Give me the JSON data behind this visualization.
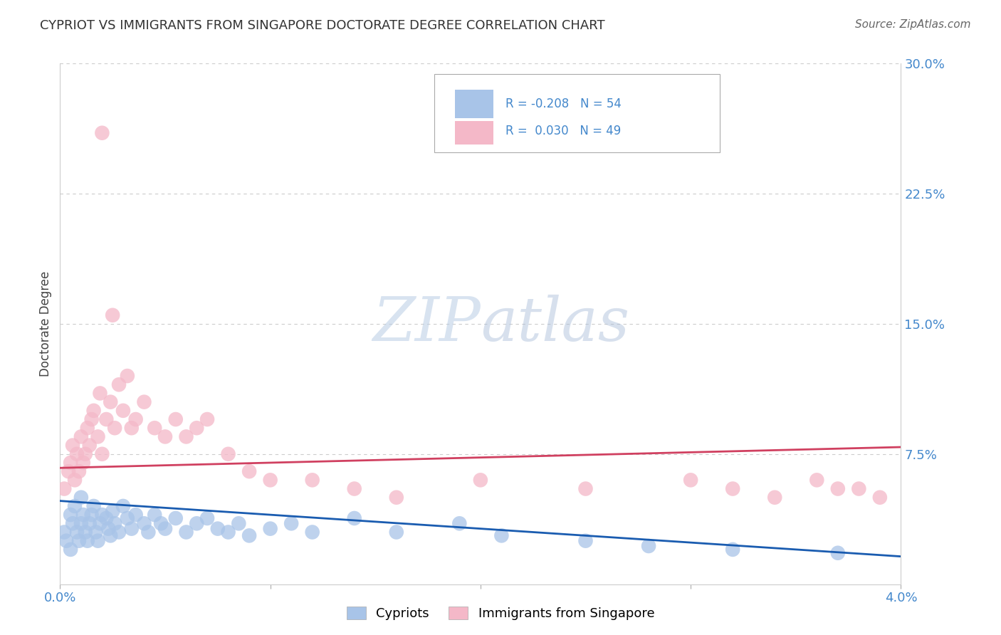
{
  "title": "CYPRIOT VS IMMIGRANTS FROM SINGAPORE DOCTORATE DEGREE CORRELATION CHART",
  "source": "Source: ZipAtlas.com",
  "ylabel_label": "Doctorate Degree",
  "xlim": [
    0.0,
    0.04
  ],
  "ylim": [
    0.0,
    0.3
  ],
  "ytick_positions": [
    0.0,
    0.075,
    0.15,
    0.225,
    0.3
  ],
  "ytick_labels": [
    "",
    "7.5%",
    "15.0%",
    "22.5%",
    "30.0%"
  ],
  "xtick_positions": [
    0.0,
    0.01,
    0.02,
    0.03,
    0.04
  ],
  "xtick_labels": [
    "0.0%",
    "",
    "",
    "",
    "4.0%"
  ],
  "legend_blue_r": "R = -0.208",
  "legend_blue_n": "N = 54",
  "legend_pink_r": "R =  0.030",
  "legend_pink_n": "N = 49",
  "blue_scatter_color": "#a8c4e8",
  "pink_scatter_color": "#f4b8c8",
  "blue_line_color": "#1a5cb0",
  "pink_line_color": "#d04060",
  "legend_blue_r_color": "#d04060",
  "legend_blue_n_color": "#1a5cb0",
  "watermark_zip_color": "#c8d8ee",
  "watermark_atlas_color": "#b8c8e0",
  "axis_label_color": "#4488cc",
  "title_color": "#333333",
  "grid_color": "#cccccc",
  "blue_line_x": [
    0.0,
    0.04
  ],
  "blue_line_y": [
    0.048,
    0.016
  ],
  "pink_line_x": [
    0.0,
    0.04
  ],
  "pink_line_y": [
    0.067,
    0.079
  ],
  "blue_x": [
    0.0002,
    0.0003,
    0.0005,
    0.0005,
    0.0006,
    0.0007,
    0.0008,
    0.0009,
    0.001,
    0.001,
    0.0011,
    0.0012,
    0.0013,
    0.0014,
    0.0015,
    0.0016,
    0.0017,
    0.0018,
    0.0019,
    0.002,
    0.0022,
    0.0023,
    0.0024,
    0.0025,
    0.0026,
    0.0028,
    0.003,
    0.0032,
    0.0034,
    0.0036,
    0.004,
    0.0042,
    0.0045,
    0.0048,
    0.005,
    0.0055,
    0.006,
    0.0065,
    0.007,
    0.0075,
    0.008,
    0.0085,
    0.009,
    0.01,
    0.011,
    0.012,
    0.014,
    0.016,
    0.019,
    0.021,
    0.025,
    0.028,
    0.032,
    0.037
  ],
  "blue_y": [
    0.03,
    0.025,
    0.04,
    0.02,
    0.035,
    0.045,
    0.03,
    0.025,
    0.05,
    0.035,
    0.04,
    0.03,
    0.025,
    0.035,
    0.04,
    0.045,
    0.03,
    0.025,
    0.035,
    0.04,
    0.038,
    0.032,
    0.028,
    0.042,
    0.035,
    0.03,
    0.045,
    0.038,
    0.032,
    0.04,
    0.035,
    0.03,
    0.04,
    0.035,
    0.032,
    0.038,
    0.03,
    0.035,
    0.038,
    0.032,
    0.03,
    0.035,
    0.028,
    0.032,
    0.035,
    0.03,
    0.038,
    0.03,
    0.035,
    0.028,
    0.025,
    0.022,
    0.02,
    0.018
  ],
  "pink_x": [
    0.0002,
    0.0004,
    0.0005,
    0.0006,
    0.0007,
    0.0008,
    0.0009,
    0.001,
    0.0011,
    0.0012,
    0.0013,
    0.0014,
    0.0015,
    0.0016,
    0.0018,
    0.0019,
    0.002,
    0.0022,
    0.0024,
    0.0026,
    0.0028,
    0.003,
    0.0032,
    0.0034,
    0.0036,
    0.004,
    0.0045,
    0.005,
    0.0055,
    0.006,
    0.0065,
    0.007,
    0.008,
    0.009,
    0.01,
    0.012,
    0.014,
    0.016,
    0.02,
    0.025,
    0.03,
    0.032,
    0.034,
    0.036,
    0.037,
    0.038,
    0.039,
    0.002,
    0.0025
  ],
  "pink_y": [
    0.055,
    0.065,
    0.07,
    0.08,
    0.06,
    0.075,
    0.065,
    0.085,
    0.07,
    0.075,
    0.09,
    0.08,
    0.095,
    0.1,
    0.085,
    0.11,
    0.075,
    0.095,
    0.105,
    0.09,
    0.115,
    0.1,
    0.12,
    0.09,
    0.095,
    0.105,
    0.09,
    0.085,
    0.095,
    0.085,
    0.09,
    0.095,
    0.075,
    0.065,
    0.06,
    0.06,
    0.055,
    0.05,
    0.06,
    0.055,
    0.06,
    0.055,
    0.05,
    0.06,
    0.055,
    0.055,
    0.05,
    0.26,
    0.155
  ]
}
